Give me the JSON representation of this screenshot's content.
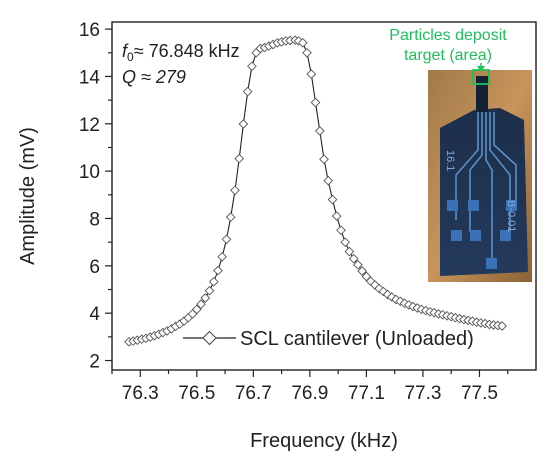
{
  "chart_data": {
    "type": "scatter",
    "title": "",
    "xlabel": "Frequency (kHz)",
    "ylabel": "Amplitude (mV)",
    "xlim": [
      76.2,
      77.7
    ],
    "ylim": [
      1.6,
      16.3
    ],
    "xticks": [
      "76.2",
      "76.3",
      "76.4",
      "76.5",
      "76.6",
      "76.7",
      "76.8",
      "76.9",
      "77.0",
      "77.1",
      "77.2",
      "77.3",
      "77.4",
      "77.5",
      "77.6"
    ],
    "yticks": [
      "2",
      "4",
      "6",
      "8",
      "10",
      "12",
      "14",
      "16"
    ],
    "grid": false,
    "legend_position": "bottom-right",
    "annotations": {
      "f0_symbol": "f",
      "f0_subscript": "0",
      "f0_text": "≈ 76.848 kHz",
      "q_text": "Q ≈ 279"
    },
    "inset": {
      "label_line1": "Particles deposit",
      "label_line2": "target (area)",
      "chip_text": [
        "16.1",
        "B-0.01"
      ]
    },
    "series": [
      {
        "name": "SCL cantilever (Unloaded)",
        "marker": "diamond-open",
        "color": "#222222",
        "x": [
          76.26,
          76.275,
          76.29,
          76.305,
          76.32,
          76.335,
          76.35,
          76.365,
          76.38,
          76.395,
          76.41,
          76.425,
          76.44,
          76.455,
          76.47,
          76.485,
          76.5,
          76.515,
          76.53,
          76.545,
          76.56,
          76.575,
          76.59,
          76.605,
          76.62,
          76.635,
          76.65,
          76.665,
          76.68,
          76.695,
          76.71,
          76.725,
          76.74,
          76.755,
          76.77,
          76.785,
          76.8,
          76.815,
          76.83,
          76.848,
          76.86,
          76.875,
          76.89,
          76.905,
          76.92,
          76.935,
          76.95,
          76.965,
          76.98,
          76.995,
          77.01,
          77.025,
          77.04,
          77.055,
          77.07,
          77.085,
          77.1,
          77.115,
          77.13,
          77.145,
          77.16,
          77.175,
          77.19,
          77.205,
          77.22,
          77.235,
          77.25,
          77.265,
          77.28,
          77.295,
          77.31,
          77.325,
          77.34,
          77.355,
          77.37,
          77.385,
          77.4,
          77.415,
          77.43,
          77.445,
          77.46,
          77.475,
          77.49,
          77.505,
          77.52,
          77.535,
          77.55,
          77.565,
          77.58
        ],
        "y": [
          2.79,
          2.82,
          2.86,
          2.9,
          2.94,
          2.99,
          3.05,
          3.11,
          3.18,
          3.25,
          3.34,
          3.44,
          3.54,
          3.67,
          3.81,
          3.97,
          4.16,
          4.38,
          4.64,
          4.95,
          5.33,
          5.8,
          6.38,
          7.12,
          8.06,
          9.19,
          10.53,
          11.99,
          13.36,
          14.43,
          15.0,
          15.18,
          15.22,
          15.28,
          15.35,
          15.42,
          15.46,
          15.5,
          15.52,
          15.53,
          15.5,
          15.42,
          15.0,
          14.1,
          12.9,
          11.7,
          10.5,
          9.6,
          8.8,
          8.1,
          7.5,
          7.0,
          6.6,
          6.3,
          6.05,
          5.78,
          5.55,
          5.35,
          5.19,
          5.04,
          4.91,
          4.79,
          4.68,
          4.58,
          4.5,
          4.42,
          4.35,
          4.28,
          4.22,
          4.16,
          4.11,
          4.06,
          4.02,
          3.97,
          3.93,
          3.89,
          3.85,
          3.81,
          3.77,
          3.73,
          3.69,
          3.66,
          3.62,
          3.59,
          3.56,
          3.52,
          3.5,
          3.48,
          3.46
        ]
      }
    ]
  }
}
